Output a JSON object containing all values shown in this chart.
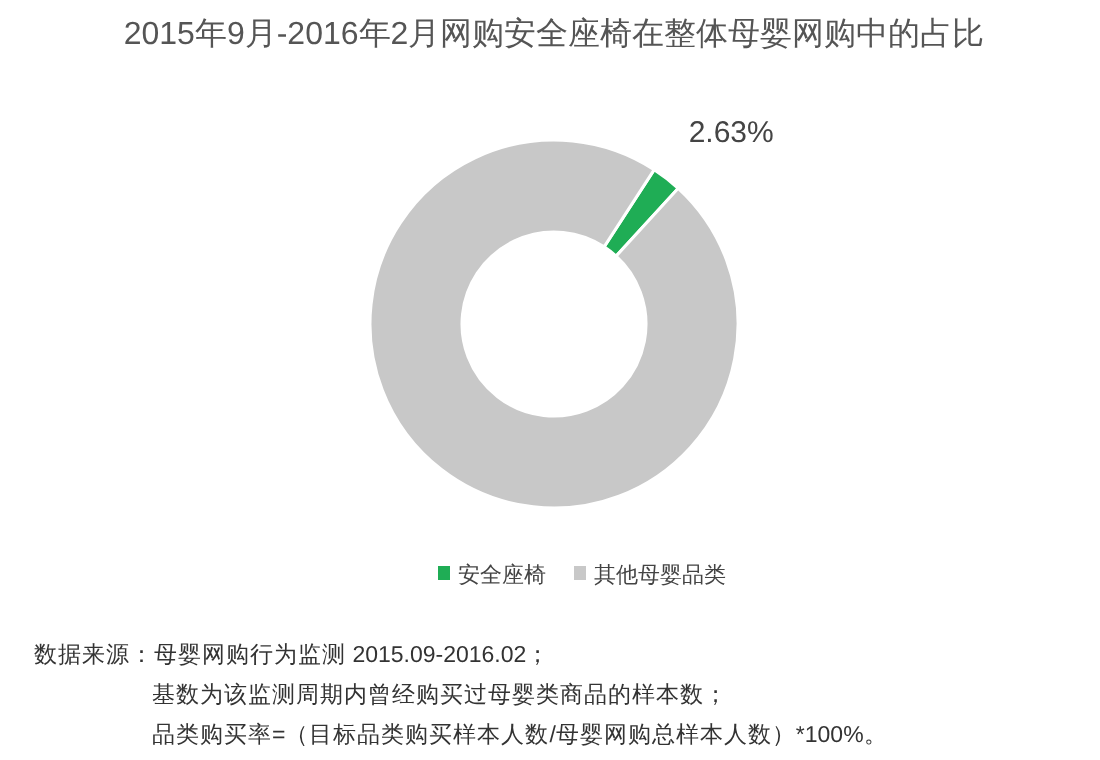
{
  "chart_data": {
    "type": "donut",
    "title": "2015年9月-2016年2月网购安全座椅在整体母婴网购中的占比",
    "categories": [
      "安全座椅",
      "其他母婴品类"
    ],
    "values": [
      2.63,
      97.37
    ],
    "colors": [
      "#1fad55",
      "#c8c8c8"
    ],
    "value_labels": [
      "2.63%",
      null
    ],
    "legend": "bottom",
    "annotations": [
      "数据来源：母婴网购行为监测 2015.09-2016.02；",
      "基数为该监测周期内曾经购买过母婴类商品的样本数；",
      "品类购买率=（目标品类购买样本人数/母婴网购总样本人数）*100%。"
    ]
  }
}
